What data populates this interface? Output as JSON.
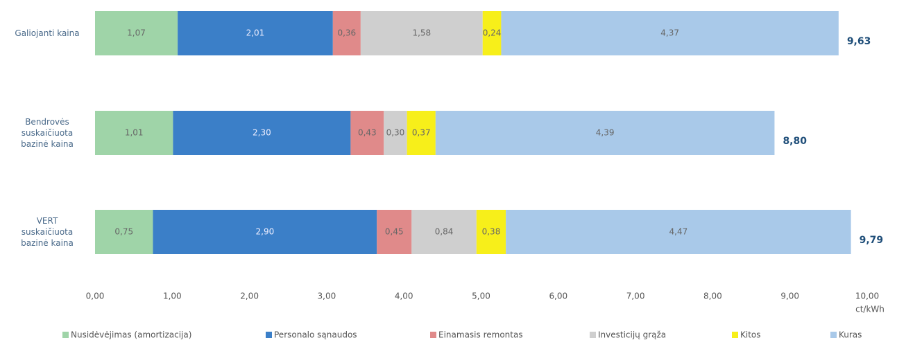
{
  "chart_data": {
    "type": "stacked-bar-horizontal",
    "categories": [
      "Galiojanti kaina",
      "Bendrovės\nsuskaičiuota\nbazinė kaina",
      "VERT\nsuskaičiuota\nbazinė kaina"
    ],
    "series": [
      {
        "name": "Nusidėvėjimas (amortizacija)",
        "color": "#9fd4a8",
        "values": [
          1.07,
          1.01,
          0.75
        ],
        "value_labels": [
          "1,07",
          "1,01",
          "0,75"
        ]
      },
      {
        "name": "Personalo sąnaudos",
        "color": "#3b7fc8",
        "values": [
          2.01,
          2.3,
          2.9
        ],
        "value_labels": [
          "2,01",
          "2,30",
          "2,90"
        ]
      },
      {
        "name": "Einamasis remontas",
        "color": "#e08a8a",
        "values": [
          0.36,
          0.43,
          0.45
        ],
        "value_labels": [
          "0,36",
          "0,43",
          "0,45"
        ]
      },
      {
        "name": "Investicijų grąža",
        "color": "#cfcfcf",
        "values": [
          1.58,
          0.3,
          0.84
        ],
        "value_labels": [
          "1,58",
          "0,30",
          "0,84"
        ]
      },
      {
        "name": "Kitos",
        "color": "#f7ef1a",
        "values": [
          0.24,
          0.37,
          0.38
        ],
        "value_labels": [
          "0,24",
          "0,37",
          "0,38"
        ]
      },
      {
        "name": "Kuras",
        "color": "#a9c9e9",
        "values": [
          4.37,
          4.39,
          4.47
        ],
        "value_labels": [
          "4,37",
          "4,39",
          "4,47"
        ]
      }
    ],
    "totals": [
      9.63,
      8.8,
      9.79
    ],
    "total_labels": [
      "9,63",
      "8,80",
      "9,79"
    ],
    "xlim": [
      0,
      10
    ],
    "xticks": [
      {
        "value": 0,
        "label": "0,00"
      },
      {
        "value": 1,
        "label": "1,00"
      },
      {
        "value": 2,
        "label": "2,00"
      },
      {
        "value": 3,
        "label": "3,00"
      },
      {
        "value": 4,
        "label": "4,00"
      },
      {
        "value": 5,
        "label": "5,00"
      },
      {
        "value": 6,
        "label": "6,00"
      },
      {
        "value": 7,
        "label": "7,00"
      },
      {
        "value": 8,
        "label": "8,00"
      },
      {
        "value": 9,
        "label": "9,00"
      },
      {
        "value": 10,
        "label": "10,00"
      }
    ],
    "x_axis_label": "ct/kWh",
    "legend": "bottom"
  }
}
